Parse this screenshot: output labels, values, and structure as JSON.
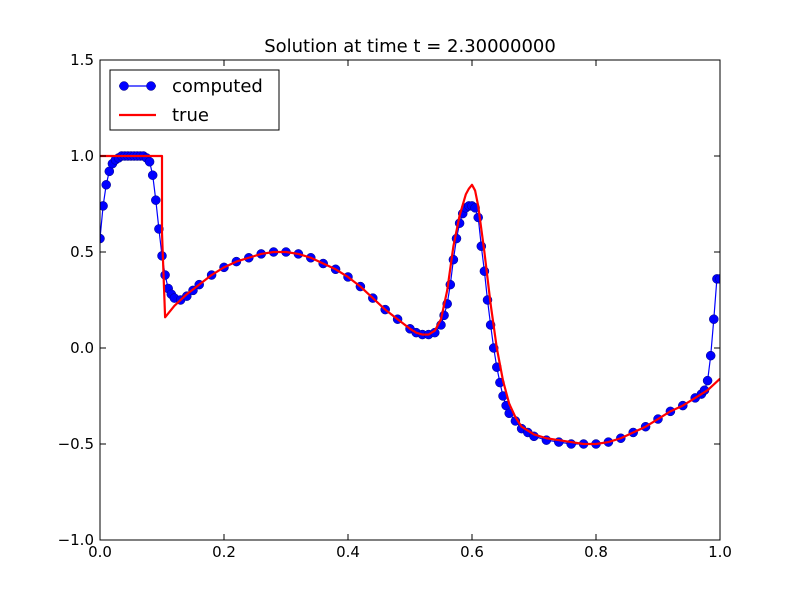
{
  "chart_data": {
    "type": "line",
    "title": "Solution at time t =      2.30000000",
    "xlabel": "",
    "ylabel": "",
    "xlim": [
      0.0,
      1.0
    ],
    "ylim": [
      -1.0,
      1.5
    ],
    "x_ticks": [
      "0.0",
      "0.2",
      "0.4",
      "0.6",
      "0.8",
      "1.0"
    ],
    "y_ticks": [
      "1.5",
      "1.0",
      "0.5",
      "0.0",
      "−0.5",
      "−1.0"
    ],
    "x_tick_values": [
      0.0,
      0.2,
      0.4,
      0.6,
      0.8,
      1.0
    ],
    "y_tick_values": [
      1.5,
      1.0,
      0.5,
      0.0,
      -0.5,
      -1.0
    ],
    "grid": false,
    "legend_position": "upper-left",
    "series": [
      {
        "name": "computed",
        "style": "line-with-circle-markers",
        "color": "#0000ff",
        "x": [
          0.0,
          0.005,
          0.01,
          0.015,
          0.02,
          0.025,
          0.03,
          0.035,
          0.04,
          0.045,
          0.05,
          0.055,
          0.06,
          0.065,
          0.07,
          0.075,
          0.08,
          0.085,
          0.09,
          0.095,
          0.1,
          0.105,
          0.11,
          0.115,
          0.12,
          0.13,
          0.14,
          0.15,
          0.16,
          0.18,
          0.2,
          0.22,
          0.24,
          0.26,
          0.28,
          0.3,
          0.32,
          0.34,
          0.36,
          0.38,
          0.4,
          0.42,
          0.44,
          0.46,
          0.48,
          0.5,
          0.51,
          0.52,
          0.53,
          0.54,
          0.55,
          0.555,
          0.56,
          0.565,
          0.57,
          0.575,
          0.58,
          0.585,
          0.59,
          0.595,
          0.6,
          0.605,
          0.61,
          0.615,
          0.62,
          0.625,
          0.63,
          0.635,
          0.64,
          0.645,
          0.65,
          0.655,
          0.66,
          0.67,
          0.68,
          0.69,
          0.7,
          0.72,
          0.74,
          0.76,
          0.78,
          0.8,
          0.82,
          0.84,
          0.86,
          0.88,
          0.9,
          0.92,
          0.94,
          0.96,
          0.97,
          0.975,
          0.98,
          0.985,
          0.99,
          0.995,
          1.0
        ],
        "y": [
          0.57,
          0.74,
          0.85,
          0.92,
          0.96,
          0.98,
          0.99,
          1.0,
          1.0,
          1.0,
          1.0,
          1.0,
          1.0,
          1.0,
          1.0,
          0.99,
          0.97,
          0.9,
          0.77,
          0.62,
          0.48,
          0.38,
          0.31,
          0.28,
          0.26,
          0.25,
          0.27,
          0.3,
          0.33,
          0.38,
          0.42,
          0.45,
          0.47,
          0.49,
          0.5,
          0.5,
          0.49,
          0.47,
          0.44,
          0.41,
          0.37,
          0.32,
          0.26,
          0.2,
          0.15,
          0.1,
          0.08,
          0.07,
          0.07,
          0.08,
          0.12,
          0.17,
          0.23,
          0.33,
          0.46,
          0.57,
          0.65,
          0.7,
          0.73,
          0.74,
          0.74,
          0.73,
          0.68,
          0.53,
          0.4,
          0.25,
          0.12,
          0.0,
          -0.1,
          -0.18,
          -0.25,
          -0.3,
          -0.34,
          -0.38,
          -0.42,
          -0.44,
          -0.46,
          -0.48,
          -0.49,
          -0.5,
          -0.5,
          -0.5,
          -0.49,
          -0.47,
          -0.44,
          -0.41,
          -0.37,
          -0.33,
          -0.3,
          -0.26,
          -0.24,
          -0.22,
          -0.17,
          -0.04,
          0.15,
          0.36,
          0.36
        ]
      },
      {
        "name": "true",
        "style": "line",
        "color": "#ff0000",
        "x": [
          0.0,
          0.1,
          0.1,
          0.105,
          0.12,
          0.14,
          0.16,
          0.18,
          0.2,
          0.22,
          0.24,
          0.26,
          0.28,
          0.3,
          0.32,
          0.34,
          0.36,
          0.38,
          0.4,
          0.42,
          0.44,
          0.46,
          0.48,
          0.5,
          0.51,
          0.52,
          0.53,
          0.54,
          0.55,
          0.56,
          0.57,
          0.58,
          0.59,
          0.595,
          0.6,
          0.605,
          0.61,
          0.62,
          0.63,
          0.64,
          0.65,
          0.66,
          0.67,
          0.68,
          0.7,
          0.72,
          0.74,
          0.76,
          0.78,
          0.8,
          0.82,
          0.84,
          0.86,
          0.88,
          0.9,
          0.92,
          0.94,
          0.96,
          0.98,
          1.0
        ],
        "y": [
          1.0,
          1.0,
          0.6,
          0.16,
          0.22,
          0.28,
          0.33,
          0.38,
          0.42,
          0.45,
          0.47,
          0.49,
          0.5,
          0.5,
          0.49,
          0.47,
          0.44,
          0.41,
          0.37,
          0.32,
          0.26,
          0.2,
          0.15,
          0.1,
          0.08,
          0.07,
          0.07,
          0.09,
          0.15,
          0.3,
          0.53,
          0.69,
          0.8,
          0.83,
          0.85,
          0.82,
          0.74,
          0.5,
          0.23,
          0.0,
          -0.17,
          -0.29,
          -0.36,
          -0.41,
          -0.45,
          -0.47,
          -0.48,
          -0.49,
          -0.5,
          -0.5,
          -0.49,
          -0.47,
          -0.44,
          -0.41,
          -0.37,
          -0.33,
          -0.3,
          -0.26,
          -0.22,
          -0.16
        ]
      }
    ]
  }
}
